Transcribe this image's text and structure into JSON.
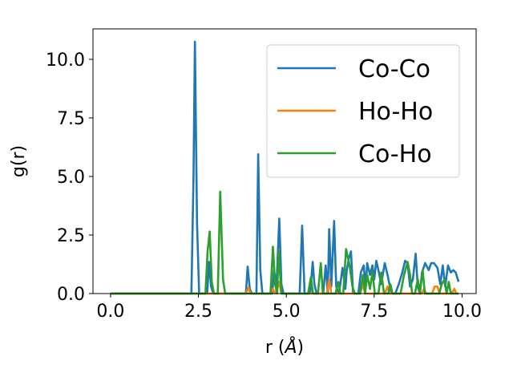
{
  "chart_data": {
    "type": "line",
    "xlabel": "r (",
    "xlabel_unit": "Å",
    "xlabel_close": ")",
    "ylabel": "g(r)",
    "xlim": [
      -0.5,
      10.4
    ],
    "ylim": [
      0,
      11.3
    ],
    "xticks": [
      0.0,
      2.5,
      5.0,
      7.5,
      10.0
    ],
    "xtick_labels": [
      "0.0",
      "2.5",
      "5.0",
      "7.5",
      "10.0"
    ],
    "yticks": [
      0.0,
      2.5,
      5.0,
      7.5,
      10.0
    ],
    "ytick_labels": [
      "0.0",
      "2.5",
      "5.0",
      "7.5",
      "10.0"
    ],
    "grid": false,
    "legend_position": "top-right",
    "series": [
      {
        "name": "Co-Co",
        "color": "#1f77b4",
        "points": [
          [
            0,
            0
          ],
          [
            2.3,
            0
          ],
          [
            2.36,
            5.0
          ],
          [
            2.4,
            10.75
          ],
          [
            2.46,
            3.0
          ],
          [
            2.52,
            0
          ],
          [
            2.75,
            0
          ],
          [
            2.8,
            1.35
          ],
          [
            2.86,
            0.3
          ],
          [
            2.92,
            0
          ],
          [
            3.85,
            0
          ],
          [
            3.9,
            1.15
          ],
          [
            3.96,
            0.2
          ],
          [
            4.02,
            0
          ],
          [
            4.15,
            0
          ],
          [
            4.2,
            5.95
          ],
          [
            4.26,
            1.0
          ],
          [
            4.32,
            0
          ],
          [
            4.6,
            0
          ],
          [
            4.65,
            1.0
          ],
          [
            4.72,
            0.3
          ],
          [
            4.8,
            3.2
          ],
          [
            4.86,
            0.4
          ],
          [
            4.92,
            0
          ],
          [
            5.38,
            0
          ],
          [
            5.45,
            2.9
          ],
          [
            5.52,
            0
          ],
          [
            5.68,
            0
          ],
          [
            5.75,
            1.35
          ],
          [
            5.8,
            0.4
          ],
          [
            5.86,
            0
          ],
          [
            6.05,
            0
          ],
          [
            6.12,
            1.2
          ],
          [
            6.18,
            0
          ],
          [
            6.22,
            2.75
          ],
          [
            6.28,
            0.3
          ],
          [
            6.36,
            3.1
          ],
          [
            6.42,
            0.3
          ],
          [
            6.5,
            0
          ],
          [
            6.6,
            1.1
          ],
          [
            6.68,
            0.2
          ],
          [
            6.72,
            1.0
          ],
          [
            6.78,
            1.5
          ],
          [
            6.84,
            1.8
          ],
          [
            6.9,
            0
          ],
          [
            7.05,
            0
          ],
          [
            7.12,
            0.9
          ],
          [
            7.2,
            1.2
          ],
          [
            7.26,
            0.3
          ],
          [
            7.3,
            1.3
          ],
          [
            7.38,
            0.8
          ],
          [
            7.45,
            1.2
          ],
          [
            7.5,
            0.6
          ],
          [
            7.56,
            1.4
          ],
          [
            7.62,
            1.0
          ],
          [
            7.7,
            0.4
          ],
          [
            7.8,
            1.3
          ],
          [
            7.88,
            0.8
          ],
          [
            7.96,
            0.2
          ],
          [
            8.02,
            0
          ],
          [
            8.1,
            0
          ],
          [
            8.2,
            0.4
          ],
          [
            8.3,
            0.9
          ],
          [
            8.38,
            1.4
          ],
          [
            8.45,
            1.3
          ],
          [
            8.52,
            0.3
          ],
          [
            8.6,
            0.6
          ],
          [
            8.68,
            1.7
          ],
          [
            8.74,
            0.3
          ],
          [
            8.8,
            0
          ],
          [
            8.86,
            0.9
          ],
          [
            8.95,
            1.3
          ],
          [
            9.05,
            1.0
          ],
          [
            9.12,
            1.3
          ],
          [
            9.2,
            1.3
          ],
          [
            9.3,
            1.1
          ],
          [
            9.38,
            0.4
          ],
          [
            9.45,
            1.2
          ],
          [
            9.52,
            0.3
          ],
          [
            9.6,
            1.2
          ],
          [
            9.68,
            0.9
          ],
          [
            9.75,
            1.0
          ],
          [
            9.82,
            0.9
          ],
          [
            9.9,
            0.5
          ]
        ]
      },
      {
        "name": "Ho-Ho",
        "color": "#ff7f0e",
        "points": [
          [
            0,
            0
          ],
          [
            3.85,
            0
          ],
          [
            3.92,
            0.25
          ],
          [
            3.98,
            0
          ],
          [
            4.55,
            0
          ],
          [
            4.62,
            0.2
          ],
          [
            4.68,
            0
          ],
          [
            4.74,
            0.2
          ],
          [
            4.8,
            0.5
          ],
          [
            4.86,
            0
          ],
          [
            6.15,
            0
          ],
          [
            6.22,
            0.6
          ],
          [
            6.28,
            0
          ],
          [
            7.1,
            0
          ],
          [
            7.18,
            0.4
          ],
          [
            7.24,
            0
          ],
          [
            7.8,
            0
          ],
          [
            7.88,
            0.3
          ],
          [
            7.94,
            0
          ],
          [
            8.85,
            0
          ],
          [
            8.92,
            0.2
          ],
          [
            8.98,
            0
          ],
          [
            9.15,
            0
          ],
          [
            9.22,
            0.3
          ],
          [
            9.3,
            0.3
          ],
          [
            9.36,
            0
          ],
          [
            9.7,
            0
          ],
          [
            9.78,
            0.2
          ],
          [
            9.84,
            0
          ],
          [
            9.9,
            0
          ]
        ]
      },
      {
        "name": "Co-Ho",
        "color": "#2ca02c",
        "points": [
          [
            0,
            0
          ],
          [
            2.7,
            0
          ],
          [
            2.76,
            1.8
          ],
          [
            2.82,
            2.65
          ],
          [
            2.88,
            0.5
          ],
          [
            2.94,
            0
          ],
          [
            3.05,
            0
          ],
          [
            3.12,
            4.35
          ],
          [
            3.2,
            0.6
          ],
          [
            3.26,
            0
          ],
          [
            4.55,
            0
          ],
          [
            4.62,
            2.0
          ],
          [
            4.68,
            0.4
          ],
          [
            4.74,
            0
          ],
          [
            4.78,
            1.8
          ],
          [
            4.86,
            0
          ],
          [
            5.62,
            0
          ],
          [
            5.7,
            0.7
          ],
          [
            5.76,
            0
          ],
          [
            5.9,
            0
          ],
          [
            5.98,
            1.3
          ],
          [
            6.04,
            0
          ],
          [
            6.4,
            0
          ],
          [
            6.48,
            0.5
          ],
          [
            6.54,
            0
          ],
          [
            6.62,
            0
          ],
          [
            6.7,
            1.9
          ],
          [
            6.8,
            1.2
          ],
          [
            6.88,
            0.3
          ],
          [
            6.95,
            0
          ],
          [
            7.1,
            0
          ],
          [
            7.18,
            0.8
          ],
          [
            7.24,
            0
          ],
          [
            7.3,
            0.8
          ],
          [
            7.38,
            0.2
          ],
          [
            7.45,
            0.9
          ],
          [
            7.52,
            0
          ],
          [
            7.62,
            0
          ],
          [
            7.7,
            0.9
          ],
          [
            7.78,
            0
          ],
          [
            7.9,
            0
          ],
          [
            7.96,
            0.4
          ],
          [
            8.02,
            0
          ],
          [
            8.25,
            0
          ],
          [
            8.35,
            0.8
          ],
          [
            8.45,
            1.35
          ],
          [
            8.52,
            0.8
          ],
          [
            8.58,
            0
          ],
          [
            8.66,
            0
          ],
          [
            8.74,
            0.6
          ],
          [
            8.8,
            0
          ],
          [
            8.88,
            1.0
          ],
          [
            8.94,
            0
          ],
          [
            9.35,
            0
          ],
          [
            9.42,
            0.4
          ],
          [
            9.5,
            0.6
          ],
          [
            9.56,
            0
          ],
          [
            9.62,
            0.5
          ],
          [
            9.68,
            0
          ],
          [
            9.9,
            0
          ]
        ]
      }
    ]
  }
}
